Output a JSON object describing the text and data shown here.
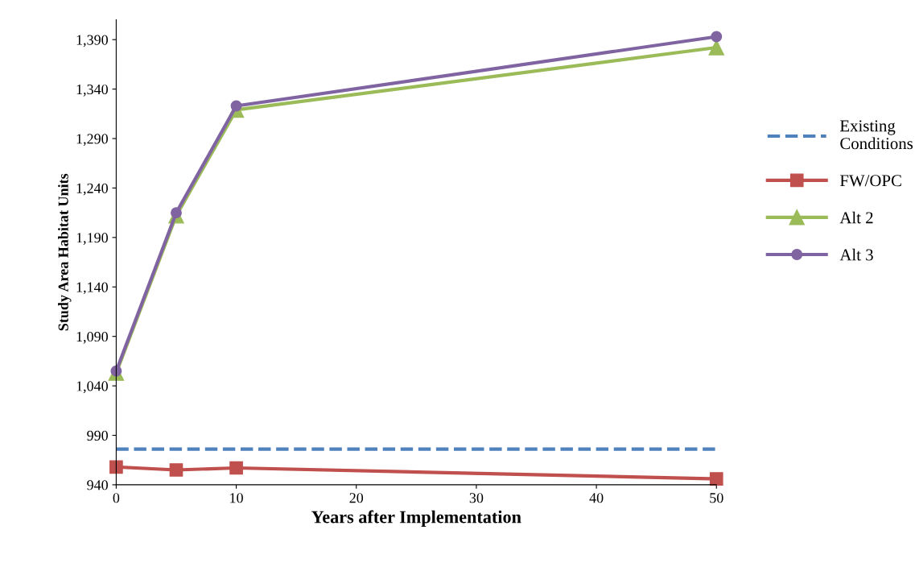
{
  "chart_data": {
    "type": "line",
    "xlabel": "Years after Implementation",
    "ylabel": "Study Area Habitat Units",
    "x": [
      0,
      5,
      10,
      50
    ],
    "xlim": [
      0,
      50
    ],
    "xticks": [
      0,
      10,
      20,
      30,
      40,
      50
    ],
    "ylim": [
      940,
      1410
    ],
    "yticks": [
      {
        "value": 940,
        "label": "940"
      },
      {
        "value": 990,
        "label": "990"
      },
      {
        "value": 1040,
        "label": "1,040"
      },
      {
        "value": 1090,
        "label": "1,090"
      },
      {
        "value": 1140,
        "label": "1,140"
      },
      {
        "value": 1190,
        "label": "1,190"
      },
      {
        "value": 1240,
        "label": "1,240"
      },
      {
        "value": 1290,
        "label": "1,290"
      },
      {
        "value": 1340,
        "label": "1,340"
      },
      {
        "value": 1390,
        "label": "1,390"
      }
    ],
    "grid": false,
    "legend": "right",
    "series": [
      {
        "name": "Existing Conditions",
        "color": "#4f81bd",
        "values": [
          976,
          976,
          976,
          976
        ],
        "marker": "none",
        "line_style": "dashed"
      },
      {
        "name": "FW/OPC",
        "color": "#c0504d",
        "values": [
          958,
          955,
          957,
          946
        ],
        "marker": "square",
        "line_style": "solid"
      },
      {
        "name": "Alt 2",
        "color": "#9bbb59",
        "values": [
          1053,
          1212,
          1319,
          1382
        ],
        "marker": "triangle",
        "line_style": "solid"
      },
      {
        "name": "Alt 3",
        "color": "#8064a2",
        "values": [
          1055,
          1215,
          1323,
          1393
        ],
        "marker": "circle",
        "line_style": "solid"
      }
    ]
  }
}
